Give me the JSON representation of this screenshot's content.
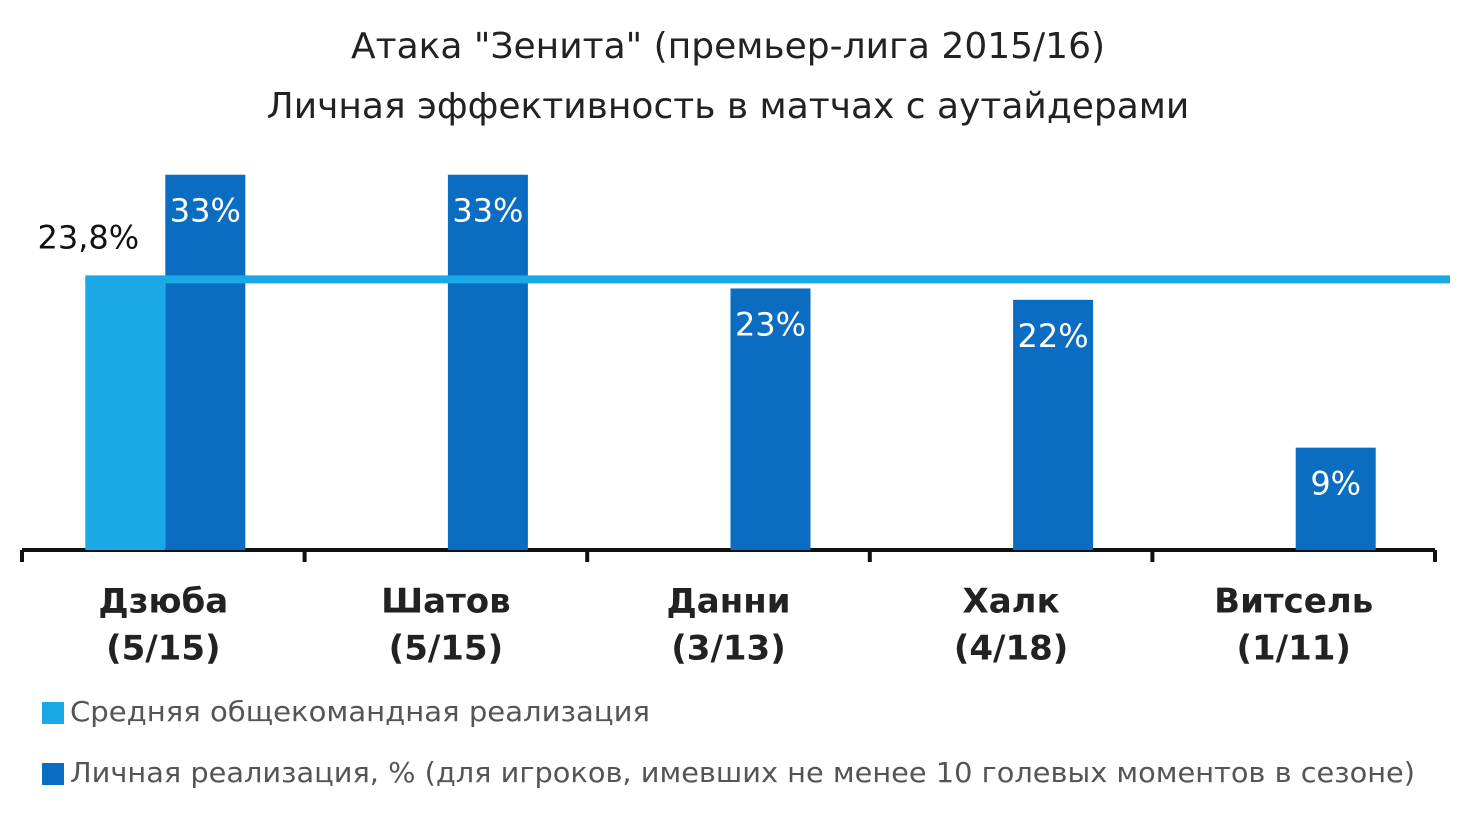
{
  "chart_data": {
    "type": "bar",
    "title": "Атака \"Зенита\" (премьер-лига 2015/16)",
    "subtitle": "Личная эффективность в матчах с аутайдерами",
    "categories": [
      [
        "Дзюба",
        "(5/15)"
      ],
      [
        "Шатов",
        "(5/15)"
      ],
      [
        "Данни",
        "(3/13)"
      ],
      [
        "Халк",
        "(4/18)"
      ],
      [
        "Витсель",
        "(1/11)"
      ]
    ],
    "series": [
      {
        "name": "Средняя общекомандная реализация",
        "color": "#1aa9e6",
        "values": [
          23.8,
          null,
          null,
          null,
          null
        ],
        "value_labels": [
          "23,8%",
          null,
          null,
          null,
          null
        ]
      },
      {
        "name": "Личная реализация, % (для игроков, имевших не менее 10 голевых моментов в сезоне)",
        "color": "#0b6dc2",
        "values": [
          33,
          33,
          23,
          22,
          9
        ],
        "value_labels": [
          "33%",
          "33%",
          "23%",
          "22%",
          "9%"
        ]
      }
    ],
    "ylim": [
      0,
      35
    ]
  }
}
